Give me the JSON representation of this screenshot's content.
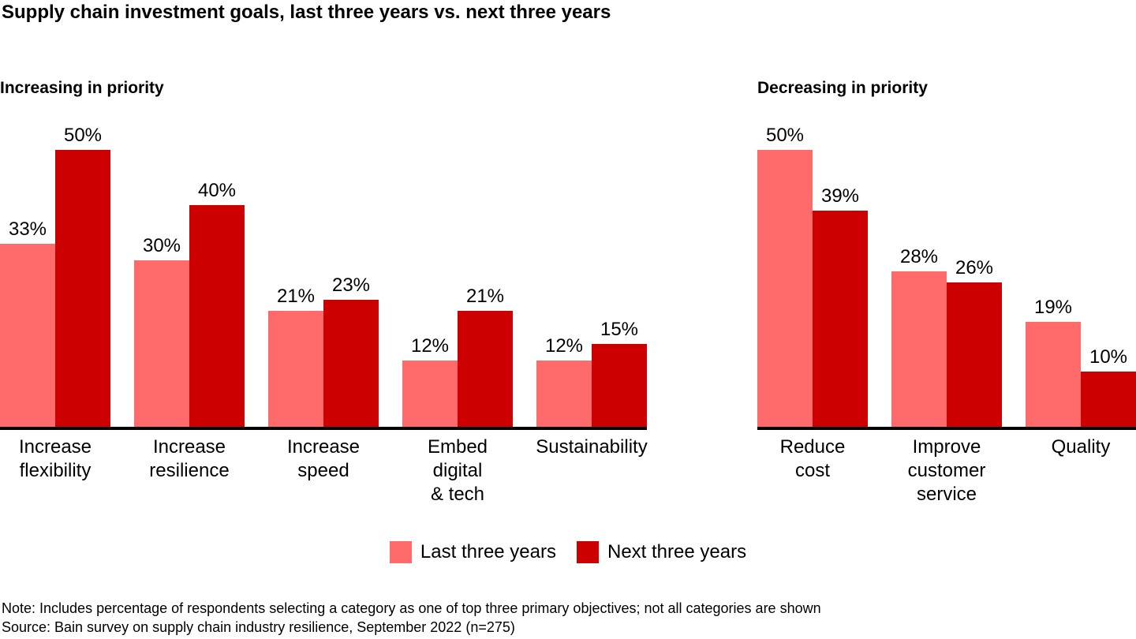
{
  "title": "Supply chain investment goals, last three years vs. next three years",
  "colors": {
    "last_three_years": "#FF6B6B",
    "next_three_years": "#CC0000",
    "axis": "#000000",
    "text": "#000000"
  },
  "legend": [
    {
      "label": "Last three years",
      "color": "#FF6B6B"
    },
    {
      "label": "Next three years",
      "color": "#CC0000"
    }
  ],
  "footer": {
    "note": "Note: Includes percentage of respondents selecting a category as one of top three primary objectives; not all categories are shown",
    "source": "Source: Bain survey on supply chain industry resilience, September 2022 (n=275)"
  },
  "chart_data": [
    {
      "type": "bar",
      "title": "Increasing in priority",
      "unit": "%",
      "ylim": [
        0,
        50
      ],
      "grid": false,
      "legend_position": "bottom-center",
      "categories": [
        "Increase\nflexibility",
        "Increase\nresilience",
        "Increase\nspeed",
        "Embed\ndigital\n& tech",
        "Sustainability"
      ],
      "series": [
        {
          "name": "Last three years",
          "color": "#FF6B6B",
          "values": [
            33,
            30,
            21,
            12,
            12
          ]
        },
        {
          "name": "Next three years",
          "color": "#CC0000",
          "values": [
            50,
            40,
            23,
            21,
            15
          ]
        }
      ]
    },
    {
      "type": "bar",
      "title": "Decreasing in priority",
      "unit": "%",
      "ylim": [
        0,
        50
      ],
      "grid": false,
      "legend_position": "bottom-center",
      "categories": [
        "Reduce\ncost",
        "Improve\ncustomer\nservice",
        "Quality"
      ],
      "series": [
        {
          "name": "Last three years",
          "color": "#FF6B6B",
          "values": [
            50,
            28,
            19
          ]
        },
        {
          "name": "Next three years",
          "color": "#CC0000",
          "values": [
            39,
            26,
            10
          ]
        }
      ]
    }
  ]
}
